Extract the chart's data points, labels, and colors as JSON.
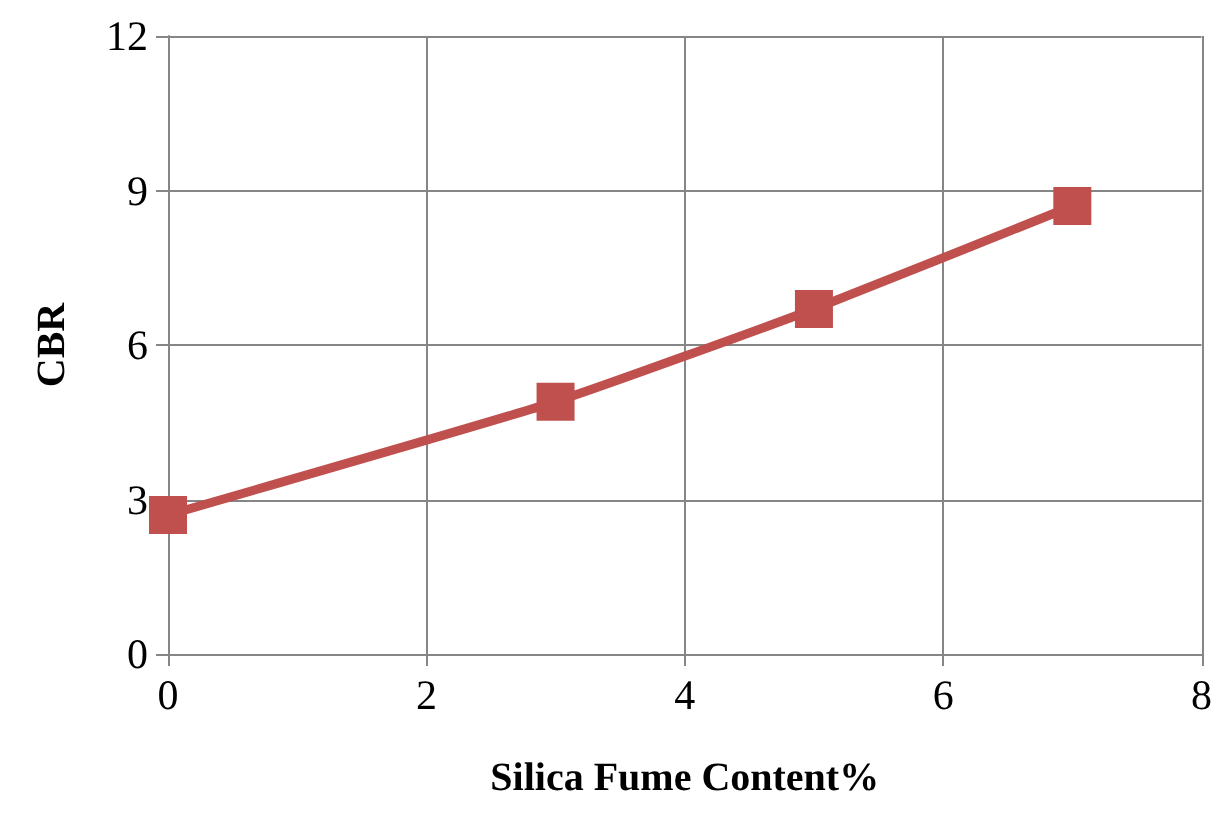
{
  "chart_data": {
    "type": "line",
    "xlabel": "Silica Fume Content%",
    "ylabel": "CBR",
    "x": [
      0,
      3,
      5,
      7
    ],
    "series": [
      {
        "color": "#c0504d",
        "values": [
          2.7,
          4.9,
          6.7,
          8.7
        ]
      }
    ],
    "xlim": [
      0,
      8
    ],
    "xticks": [
      0,
      2,
      4,
      6,
      8
    ],
    "ylim": [
      0,
      12
    ],
    "yticks": [
      0,
      3,
      6,
      9,
      12
    ],
    "grid": true,
    "marker": "square",
    "line_style": "solid"
  }
}
